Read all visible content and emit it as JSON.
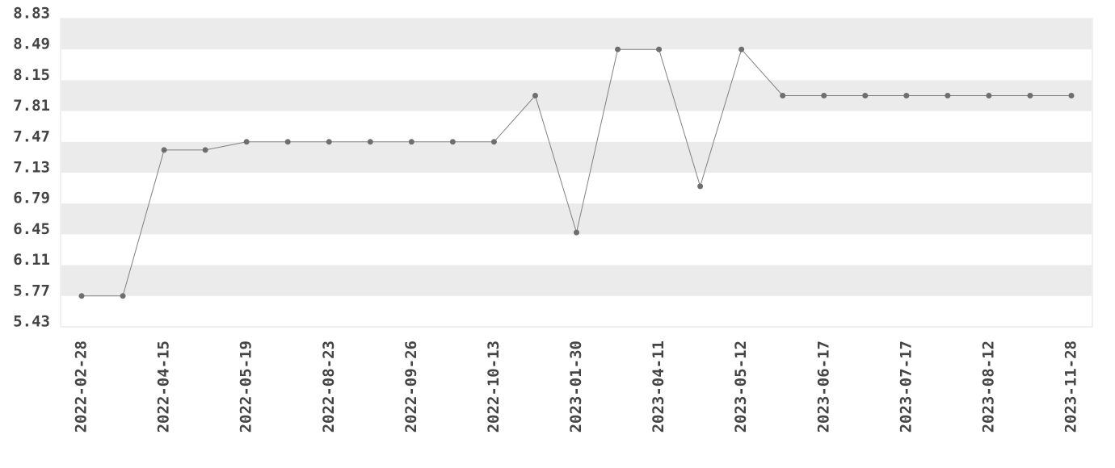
{
  "chart_data": {
    "type": "line",
    "categories": [
      "2022-02-28",
      null,
      "2022-04-15",
      null,
      "2022-05-19",
      null,
      "2022-08-23",
      null,
      "2022-09-26",
      null,
      "2022-10-13",
      null,
      "2023-01-30",
      null,
      "2023-04-11",
      null,
      "2023-05-12",
      null,
      "2023-06-17",
      null,
      "2023-07-17",
      null,
      "2023-08-12",
      null,
      "2023-11-28"
    ],
    "values": [
      5.77,
      5.77,
      7.38,
      7.38,
      7.47,
      7.47,
      7.47,
      7.47,
      7.47,
      7.47,
      7.47,
      7.98,
      6.47,
      8.49,
      8.49,
      6.98,
      8.49,
      7.98,
      7.98,
      7.98,
      7.98,
      7.98,
      7.98,
      7.98,
      7.98
    ],
    "color": "#808080",
    "ylim": [
      5.43,
      8.83
    ],
    "yticks": [
      5.43,
      5.77,
      6.11,
      6.45,
      6.79,
      7.13,
      7.47,
      7.81,
      8.15,
      8.49,
      8.83
    ],
    "grid": "bands"
  }
}
